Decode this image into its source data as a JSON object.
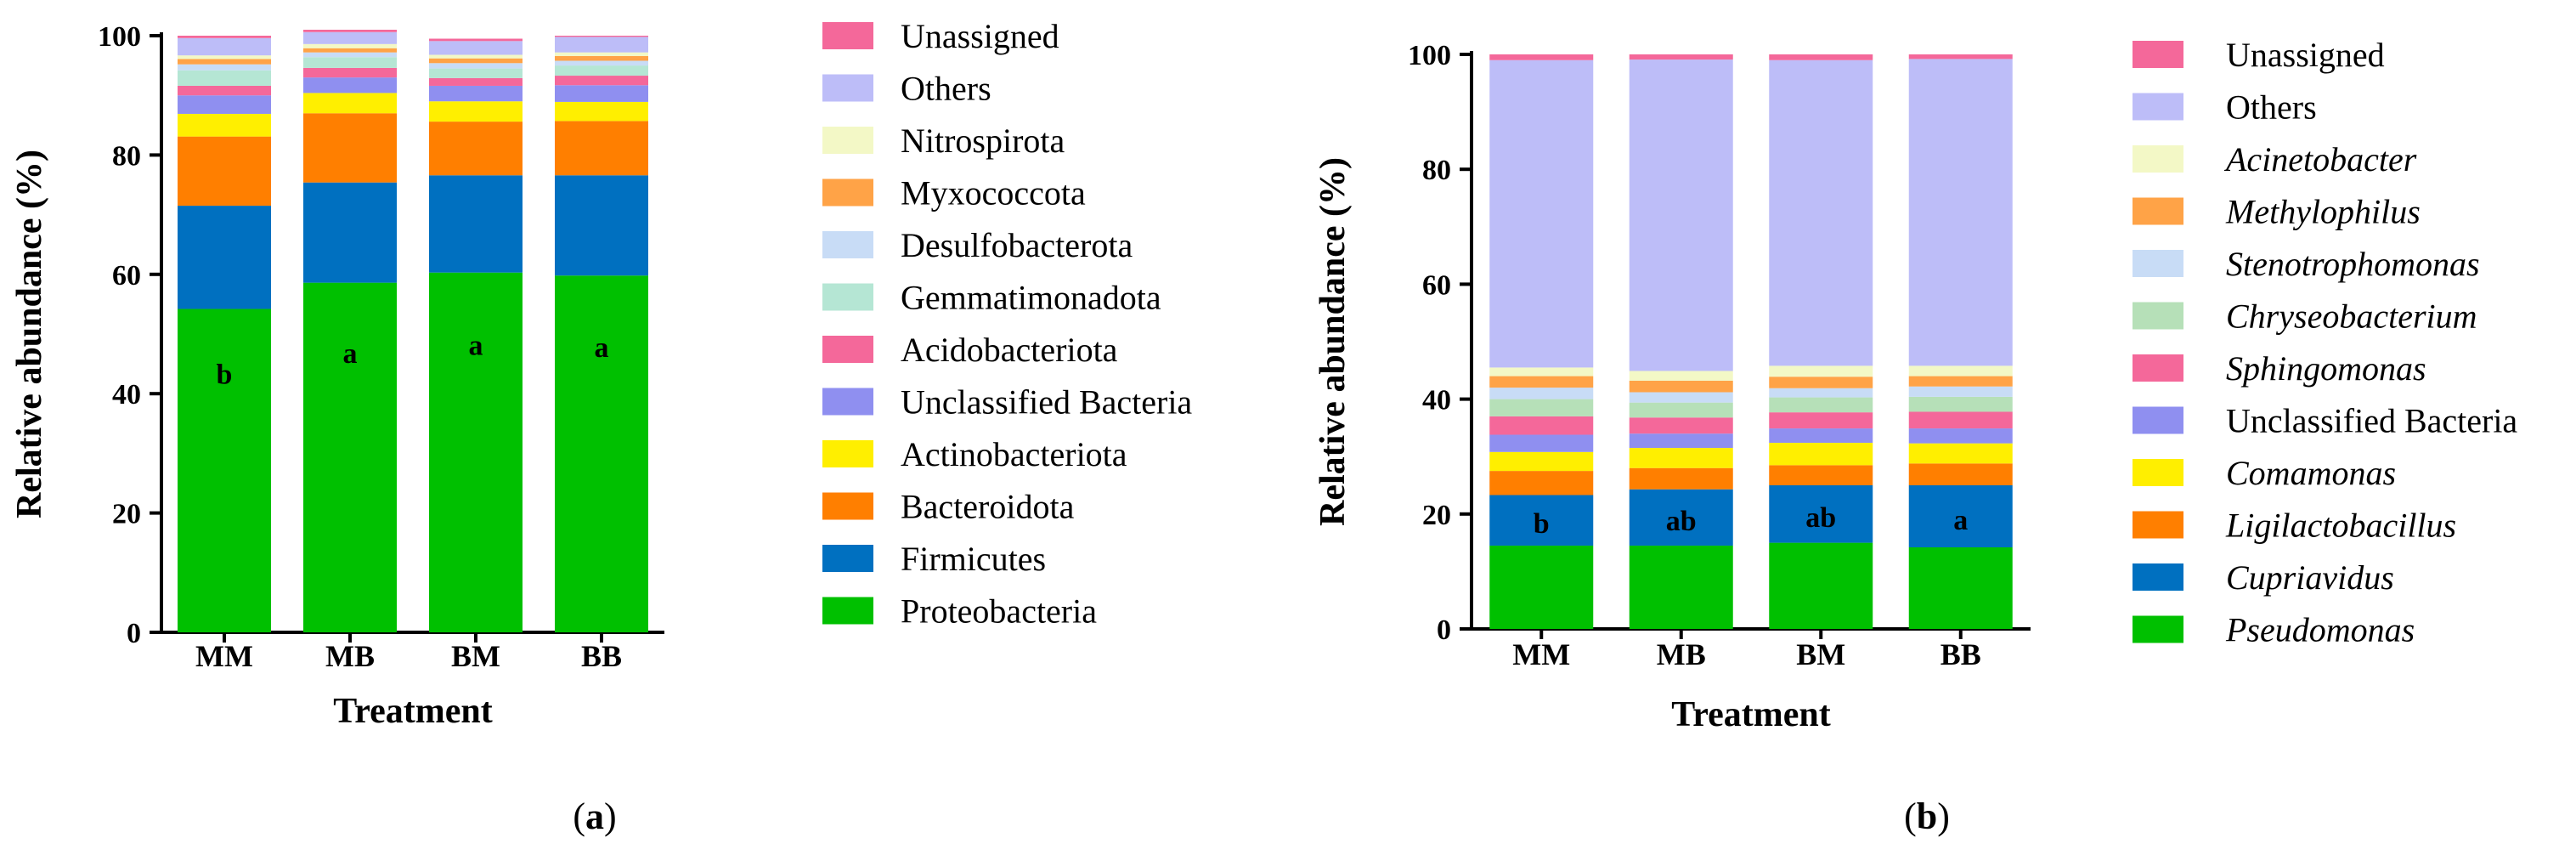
{
  "chart_data": [
    {
      "type": "bar",
      "stacked": true,
      "panel_label": "a",
      "title": "",
      "xlabel": "Treatment",
      "ylabel": "Relative abundance (%)",
      "ylim": [
        0,
        100
      ],
      "yticks": [
        0,
        20,
        40,
        60,
        80,
        100
      ],
      "categories": [
        "MM",
        "MB",
        "BM",
        "BB"
      ],
      "significance": [
        "b",
        "a",
        "a",
        "a"
      ],
      "legend_position": "right",
      "series": [
        {
          "name": "Proteobacteria",
          "color": "#00C000",
          "italic": false,
          "values": [
            54.2,
            58.6,
            60.3,
            59.8
          ]
        },
        {
          "name": "Firmicutes",
          "color": "#0070C0",
          "italic": false,
          "values": [
            17.3,
            16.8,
            16.3,
            16.8
          ]
        },
        {
          "name": "Bacteroidota",
          "color": "#FF7F00",
          "italic": false,
          "values": [
            11.6,
            11.6,
            9.0,
            9.1
          ]
        },
        {
          "name": "Actinobacteriota",
          "color": "#FFEF00",
          "italic": false,
          "values": [
            3.8,
            3.4,
            3.4,
            3.2
          ]
        },
        {
          "name": "Unclassified Bacteria",
          "color": "#8F8FF0",
          "italic": false,
          "values": [
            3.1,
            2.6,
            2.6,
            2.8
          ]
        },
        {
          "name": "Acidobacteriota",
          "color": "#F4689A",
          "italic": false,
          "values": [
            1.6,
            1.6,
            1.3,
            1.6
          ]
        },
        {
          "name": "Gemmatimonadota",
          "color": "#B5E6D4",
          "italic": false,
          "values": [
            2.6,
            1.8,
            1.6,
            1.7
          ]
        },
        {
          "name": "Desulfobacterota",
          "color": "#C8DCF6",
          "italic": false,
          "values": [
            1.0,
            0.8,
            0.9,
            0.8
          ]
        },
        {
          "name": "Myxococcota",
          "color": "#FFA347",
          "italic": false,
          "values": [
            0.9,
            0.7,
            0.8,
            0.8
          ]
        },
        {
          "name": "Nitrospirota",
          "color": "#F3F8C6",
          "italic": false,
          "values": [
            0.6,
            0.7,
            0.6,
            0.6
          ]
        },
        {
          "name": "Others",
          "color": "#BDBDF8",
          "italic": false,
          "values": [
            2.9,
            2.0,
            2.3,
            2.6
          ]
        },
        {
          "name": "Unassigned",
          "color": "#F4689A",
          "italic": false,
          "values": [
            0.4,
            0.4,
            0.4,
            0.2
          ]
        }
      ]
    },
    {
      "type": "bar",
      "stacked": true,
      "panel_label": "b",
      "title": "",
      "xlabel": "Treatment",
      "ylabel": "Relative abundance (%)",
      "ylim": [
        0,
        100
      ],
      "yticks": [
        0,
        20,
        40,
        60,
        80,
        100
      ],
      "categories": [
        "MM",
        "MB",
        "BM",
        "BB"
      ],
      "significance": [
        "b",
        "ab",
        "ab",
        "a"
      ],
      "legend_position": "right",
      "series": [
        {
          "name": "Pseudomonas",
          "color": "#00C000",
          "italic": true,
          "values": [
            14.5,
            14.5,
            15.0,
            14.2
          ]
        },
        {
          "name": "Cupriavidus",
          "color": "#0070C0",
          "italic": true,
          "values": [
            8.8,
            9.8,
            10.0,
            10.8
          ]
        },
        {
          "name": "Ligilactobacillus",
          "color": "#FF7F00",
          "italic": true,
          "values": [
            4.2,
            3.7,
            3.5,
            3.8
          ]
        },
        {
          "name": "Comamonas",
          "color": "#FFEF00",
          "italic": true,
          "values": [
            3.3,
            3.5,
            3.9,
            3.5
          ]
        },
        {
          "name": "Unclassified Bacteria",
          "color": "#8F8FF0",
          "italic": false,
          "values": [
            3.0,
            2.5,
            2.5,
            2.6
          ]
        },
        {
          "name": "Sphingomonas",
          "color": "#F4689A",
          "italic": true,
          "values": [
            3.2,
            2.8,
            2.8,
            2.9
          ]
        },
        {
          "name": "Chryseobacterium",
          "color": "#B6E0B8",
          "italic": true,
          "values": [
            3.0,
            2.6,
            2.6,
            2.6
          ]
        },
        {
          "name": "Stenotrophomonas",
          "color": "#C8DCF6",
          "italic": true,
          "values": [
            2.0,
            1.8,
            1.6,
            1.8
          ]
        },
        {
          "name": "Methylophilus",
          "color": "#FFA347",
          "italic": true,
          "values": [
            2.0,
            2.0,
            2.0,
            1.8
          ]
        },
        {
          "name": "Acinetobacter",
          "color": "#F3F8C6",
          "italic": true,
          "values": [
            1.5,
            1.7,
            1.9,
            1.8
          ]
        },
        {
          "name": "Others",
          "color": "#BDBDF8",
          "italic": false,
          "values": [
            53.5,
            54.2,
            53.2,
            53.4
          ]
        },
        {
          "name": "Unassigned",
          "color": "#F4689A",
          "italic": false,
          "values": [
            1.0,
            0.9,
            1.0,
            0.8
          ]
        }
      ]
    }
  ]
}
